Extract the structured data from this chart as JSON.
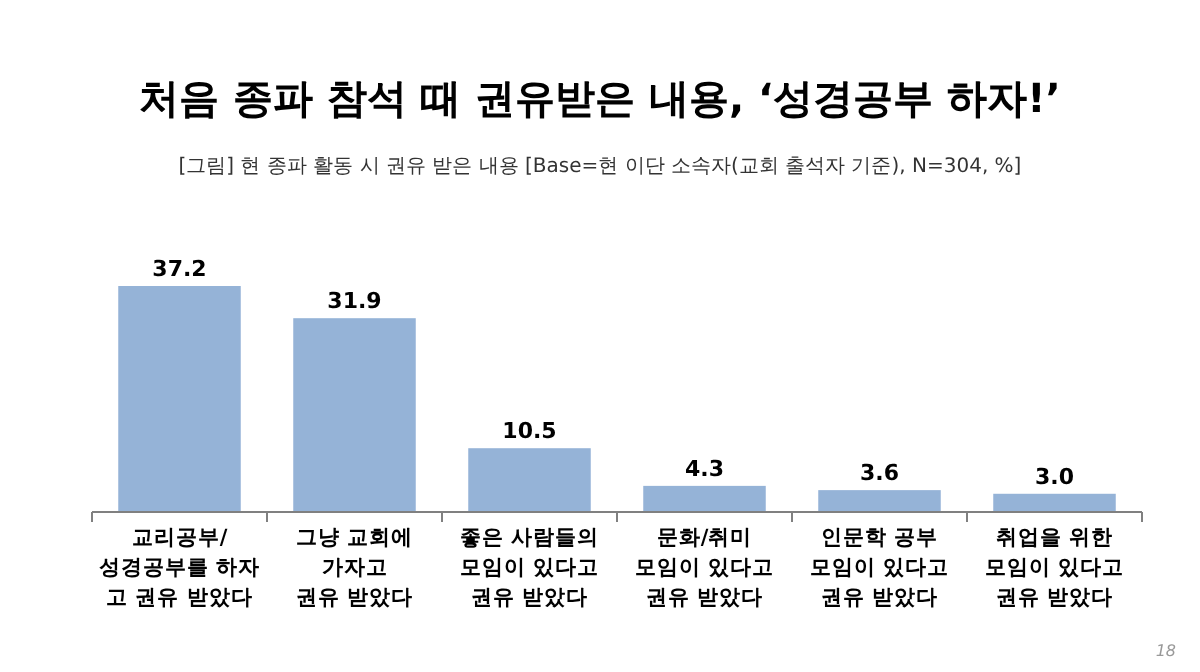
{
  "chart_data": {
    "type": "bar",
    "title": "처음 종파 참석 때 권유받은 내용, ‘성경공부 하자!’",
    "subtitle": "[그림] 현 종파 활동 시 권유 받은 내용 [Base=현 이단 소속자(교회 출석자 기준), N=304, %]",
    "categories": [
      "교리공부/\n성경공부를 하자\n고 권유 받았다",
      "그냥 교회에\n가자고\n권유 받았다",
      "좋은 사람들의\n모임이 있다고\n권유 받았다",
      "문화/취미\n모임이 있다고\n권유 받았다",
      "인문학 공부\n모임이 있다고\n권유 받았다",
      "취업을 위한\n모임이 있다고\n권유 받았다"
    ],
    "values": [
      37.2,
      31.9,
      10.5,
      4.3,
      3.6,
      3.0
    ],
    "color": "#95b3d7",
    "value_labels": [
      "37.2",
      "31.9",
      "10.5",
      "4.3",
      "3.6",
      "3.0"
    ],
    "annotations": [
      "18"
    ]
  }
}
